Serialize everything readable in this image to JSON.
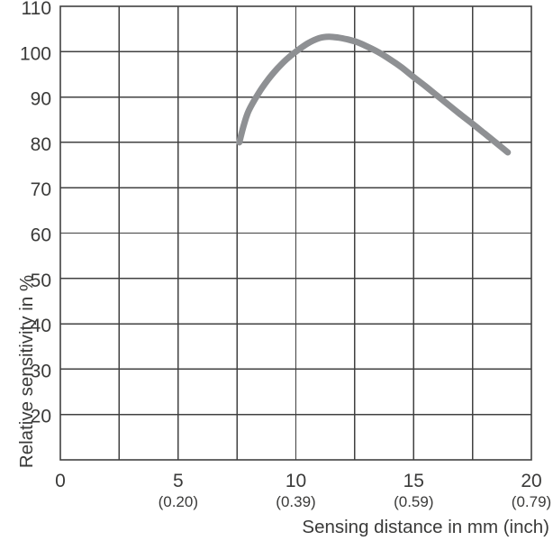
{
  "chart_data": {
    "type": "line",
    "title": "",
    "xlabel": "Sensing distance in mm (inch)",
    "ylabel": "Relative sensitivity in %",
    "xlim": [
      0,
      20
    ],
    "ylim": [
      10,
      110
    ],
    "x_grid_step": 2.5,
    "y_grid_step": 10,
    "grid": true,
    "legend": false,
    "x_ticks": [
      {
        "x": 0,
        "mm": "0",
        "inch": ""
      },
      {
        "x": 5,
        "mm": "5",
        "inch": "(0.20)"
      },
      {
        "x": 10,
        "mm": "10",
        "inch": "(0.39)"
      },
      {
        "x": 15,
        "mm": "15",
        "inch": "(0.59)"
      },
      {
        "x": 20,
        "mm": "20",
        "inch": "(0.79)"
      }
    ],
    "y_ticks": [
      {
        "y": 110,
        "label": "110"
      },
      {
        "y": 100,
        "label": "100"
      },
      {
        "y": 90,
        "label": "90"
      },
      {
        "y": 80,
        "label": "80"
      },
      {
        "y": 70,
        "label": "70"
      },
      {
        "y": 60,
        "label": "60"
      },
      {
        "y": 50,
        "label": "50"
      },
      {
        "y": 40,
        "label": "40"
      },
      {
        "y": 30,
        "label": "30"
      },
      {
        "y": 20,
        "label": "20"
      }
    ],
    "series": [
      {
        "name": "relative-sensitivity-curve",
        "color": "#8e9093",
        "stroke_width": 7,
        "points": [
          [
            7.6,
            80.0
          ],
          [
            7.8,
            84.0
          ],
          [
            8.0,
            87.0
          ],
          [
            8.4,
            90.7
          ],
          [
            8.8,
            93.7
          ],
          [
            9.2,
            96.2
          ],
          [
            9.6,
            98.3
          ],
          [
            10.0,
            100.0
          ],
          [
            10.5,
            101.8
          ],
          [
            11.0,
            103.0
          ],
          [
            11.4,
            103.3
          ],
          [
            11.8,
            103.1
          ],
          [
            12.2,
            102.7
          ],
          [
            12.6,
            102.1
          ],
          [
            13.0,
            101.2
          ],
          [
            13.5,
            99.9
          ],
          [
            14.0,
            98.3
          ],
          [
            14.5,
            96.5
          ],
          [
            15.0,
            94.4
          ],
          [
            15.5,
            92.4
          ],
          [
            16.0,
            90.3
          ],
          [
            16.5,
            88.2
          ],
          [
            17.0,
            86.1
          ],
          [
            17.5,
            84.1
          ],
          [
            18.0,
            82.0
          ],
          [
            18.5,
            79.9
          ],
          [
            19.0,
            77.8
          ]
        ]
      }
    ],
    "colors": {
      "grid": "#414141",
      "text": "#3a3a39",
      "background": "#ffffff"
    }
  }
}
